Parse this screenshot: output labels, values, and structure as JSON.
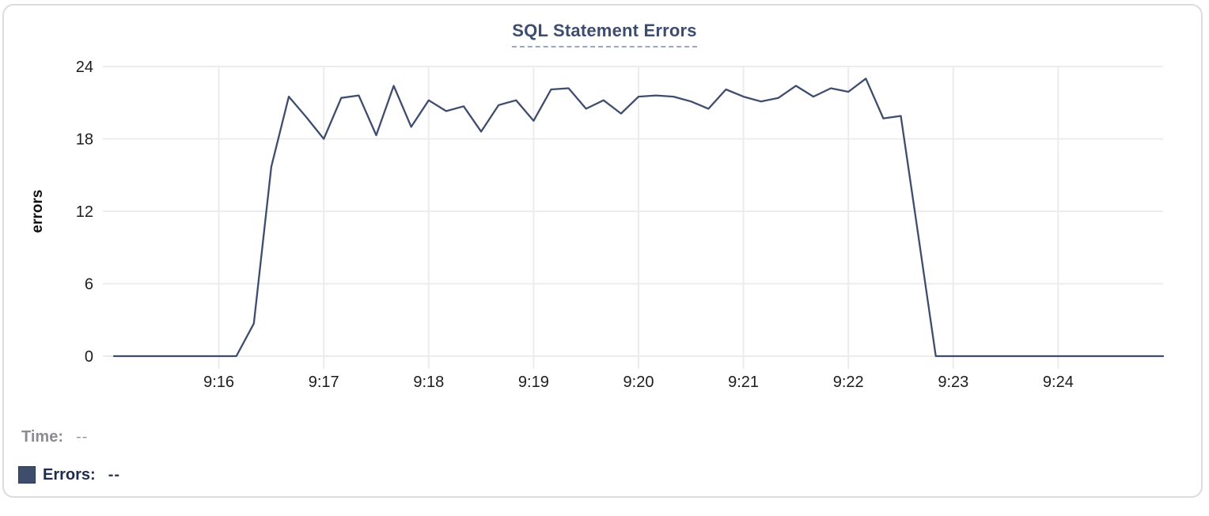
{
  "chart_data": {
    "type": "line",
    "title": "SQL Statement Errors",
    "xlabel": "",
    "ylabel": "errors",
    "ylim": [
      0,
      24
    ],
    "y_ticks": [
      0,
      6,
      12,
      18,
      24
    ],
    "x_ticks": [
      "9:16",
      "9:17",
      "9:18",
      "9:19",
      "9:20",
      "9:21",
      "9:22",
      "9:23",
      "9:24"
    ],
    "x_start": "9:15:00",
    "x_end": "9:25:00",
    "grid": "on",
    "legend_position": "bottom-left",
    "series": [
      {
        "name": "Errors",
        "color": "#3e4d6e",
        "times": [
          "9:15:00",
          "9:15:10",
          "9:15:20",
          "9:15:30",
          "9:15:40",
          "9:15:50",
          "9:16:00",
          "9:16:10",
          "9:16:20",
          "9:16:30",
          "9:16:40",
          "9:16:50",
          "9:17:00",
          "9:17:10",
          "9:17:20",
          "9:17:30",
          "9:17:40",
          "9:17:50",
          "9:18:00",
          "9:18:10",
          "9:18:20",
          "9:18:30",
          "9:18:40",
          "9:18:50",
          "9:19:00",
          "9:19:10",
          "9:19:20",
          "9:19:30",
          "9:19:40",
          "9:19:50",
          "9:20:00",
          "9:20:10",
          "9:20:20",
          "9:20:30",
          "9:20:40",
          "9:20:50",
          "9:21:00",
          "9:21:10",
          "9:21:20",
          "9:21:30",
          "9:21:40",
          "9:21:50",
          "9:22:00",
          "9:22:10",
          "9:22:20",
          "9:22:30",
          "9:22:40",
          "9:22:50",
          "9:23:00",
          "9:23:10",
          "9:23:20",
          "9:23:30",
          "9:23:40",
          "9:23:50",
          "9:24:00",
          "9:24:10",
          "9:24:20",
          "9:24:30",
          "9:24:40",
          "9:24:50",
          "9:25:00"
        ],
        "values": [
          0,
          0,
          0,
          0,
          0,
          0,
          0,
          0,
          2.7,
          15.7,
          21.5,
          19.8,
          18,
          21.4,
          21.6,
          18.3,
          22.4,
          19,
          21.2,
          20.3,
          20.7,
          18.6,
          20.8,
          21.2,
          19.5,
          22.1,
          22.2,
          20.5,
          21.2,
          20.1,
          21.5,
          21.6,
          21.5,
          21.1,
          20.5,
          22.1,
          21.5,
          21.1,
          21.4,
          22.4,
          21.5,
          22.2,
          21.9,
          23,
          19.7,
          19.9,
          10,
          0,
          0,
          0,
          0,
          0,
          0,
          0,
          0,
          0,
          0,
          0,
          0,
          0,
          0
        ]
      }
    ]
  },
  "tooltip": {
    "time_label": "Time:",
    "time_value": "--",
    "errors_label": "Errors:",
    "errors_value": "--"
  },
  "colors": {
    "line": "#3e4d6e",
    "grid": "#ececec",
    "axis_text": "#1d1d1f",
    "title": "#3d4d6f",
    "title_underline": "#9aa8c2",
    "muted_text": "#8b8b91",
    "dark_text": "#202c4e",
    "swatch": "#3f4d6c",
    "card_border": "#dcdcdc"
  }
}
